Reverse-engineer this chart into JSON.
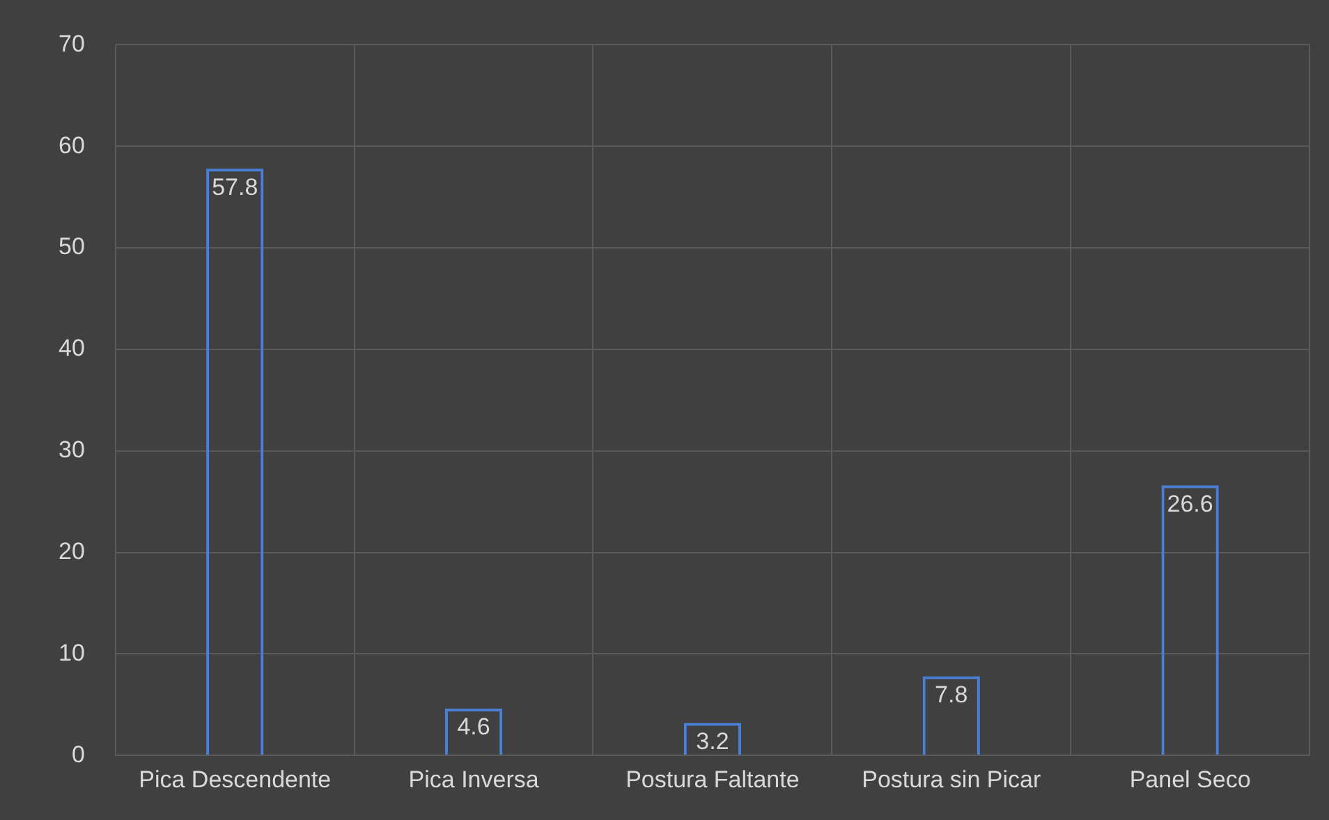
{
  "chart_data": {
    "type": "bar",
    "categories": [
      "Pica Descendente",
      "Pica Inversa",
      "Postura Faltante",
      "Postura sin Picar",
      "Panel Seco"
    ],
    "values": [
      57.8,
      4.6,
      3.2,
      7.8,
      26.6
    ],
    "color": "#4a7fd6",
    "ylim": [
      0,
      70
    ],
    "yticks": [
      0,
      10,
      20,
      30,
      40,
      50,
      60,
      70
    ],
    "grid": true,
    "data_labels": true,
    "legend": false
  }
}
